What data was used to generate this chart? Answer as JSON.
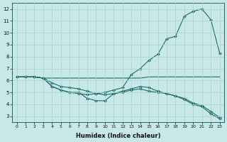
{
  "xlabel": "Humidex (Indice chaleur)",
  "background_color": "#c8e8e8",
  "grid_color": "#a8d0d0",
  "line_color": "#1a6b6b",
  "xlim": [
    -0.5,
    23.5
  ],
  "ylim": [
    2.5,
    12.5
  ],
  "yticks": [
    3,
    4,
    5,
    6,
    7,
    8,
    9,
    10,
    11,
    12
  ],
  "xticks": [
    0,
    1,
    2,
    3,
    4,
    5,
    6,
    7,
    8,
    9,
    10,
    11,
    12,
    13,
    14,
    15,
    16,
    17,
    18,
    19,
    20,
    21,
    22,
    23
  ],
  "lines": [
    {
      "x": [
        0,
        1,
        2,
        3,
        14,
        15,
        16,
        17,
        18,
        19,
        20,
        21,
        22,
        23
      ],
      "y": [
        6.3,
        6.3,
        6.3,
        6.2,
        6.2,
        6.3,
        6.3,
        6.3,
        6.3,
        6.3,
        6.3,
        6.3,
        6.3,
        6.3
      ],
      "has_markers": false
    },
    {
      "x": [
        0,
        1,
        2,
        3,
        4,
        5,
        6,
        7,
        8,
        9,
        10,
        11,
        12,
        13,
        14,
        15,
        16,
        17,
        18,
        19,
        20,
        21,
        22,
        23
      ],
      "y": [
        6.3,
        6.3,
        6.3,
        6.2,
        5.8,
        5.5,
        5.4,
        5.3,
        5.1,
        4.9,
        5.0,
        5.2,
        5.4,
        6.5,
        7.0,
        7.7,
        8.2,
        9.5,
        9.7,
        11.4,
        11.8,
        12.0,
        11.1,
        8.3
      ],
      "has_markers": true
    },
    {
      "x": [
        0,
        1,
        2,
        3,
        4,
        5,
        6,
        7,
        8,
        9,
        10,
        11,
        12,
        13,
        14,
        15,
        16,
        17,
        18,
        19,
        20,
        21,
        22,
        23
      ],
      "y": [
        6.3,
        6.3,
        6.3,
        6.2,
        5.5,
        5.2,
        5.0,
        5.0,
        4.5,
        4.3,
        4.3,
        4.9,
        5.0,
        5.2,
        5.3,
        5.1,
        5.0,
        4.9,
        4.7,
        4.5,
        4.1,
        3.9,
        3.4,
        2.9
      ],
      "has_markers": true
    },
    {
      "x": [
        0,
        1,
        2,
        3,
        4,
        5,
        6,
        7,
        8,
        9,
        10,
        11,
        12,
        13,
        14,
        15,
        16,
        17,
        18,
        19,
        20,
        21,
        22,
        23
      ],
      "y": [
        6.3,
        6.3,
        6.3,
        6.2,
        5.5,
        5.2,
        5.0,
        4.9,
        4.8,
        4.9,
        4.8,
        4.9,
        5.1,
        5.3,
        5.5,
        5.4,
        5.1,
        4.9,
        4.7,
        4.4,
        4.0,
        3.8,
        3.2,
        2.8
      ],
      "has_markers": true
    }
  ]
}
